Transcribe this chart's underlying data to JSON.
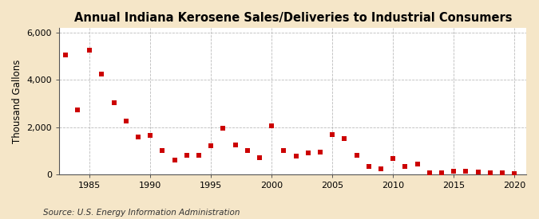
{
  "title": "Annual Indiana Kerosene Sales/Deliveries to Industrial Consumers",
  "ylabel": "Thousand Gallons",
  "source": "Source: U.S. Energy Information Administration",
  "fig_background": "#f5e6c8",
  "plot_background": "#ffffff",
  "marker_color": "#cc0000",
  "years": [
    1983,
    1984,
    1985,
    1986,
    1987,
    1988,
    1989,
    1990,
    1991,
    1992,
    1993,
    1994,
    1995,
    1996,
    1997,
    1998,
    1999,
    2000,
    2001,
    2002,
    2003,
    2004,
    2005,
    2006,
    2007,
    2008,
    2009,
    2010,
    2011,
    2012,
    2013,
    2014,
    2015,
    2016,
    2017,
    2018,
    2019,
    2020
  ],
  "values": [
    5050,
    2750,
    5250,
    4250,
    3050,
    2250,
    1600,
    1650,
    1020,
    620,
    820,
    820,
    1200,
    1950,
    1250,
    1020,
    700,
    2050,
    1000,
    780,
    900,
    940,
    1700,
    1530,
    800,
    350,
    230,
    680,
    350,
    450,
    50,
    50,
    120,
    120,
    90,
    80,
    50,
    30
  ],
  "ylim": [
    0,
    6200
  ],
  "yticks": [
    0,
    2000,
    4000,
    6000
  ],
  "ytick_labels": [
    "0",
    "2,000",
    "4,000",
    "6,000"
  ],
  "xlim": [
    1982.5,
    2021
  ],
  "xticks": [
    1985,
    1990,
    1995,
    2000,
    2005,
    2010,
    2015,
    2020
  ],
  "hgrid_color": "#bbbbbb",
  "vgrid_color": "#bbbbbb",
  "title_fontsize": 10.5,
  "label_fontsize": 8.5,
  "tick_fontsize": 8,
  "source_fontsize": 7.5,
  "marker_size": 18
}
